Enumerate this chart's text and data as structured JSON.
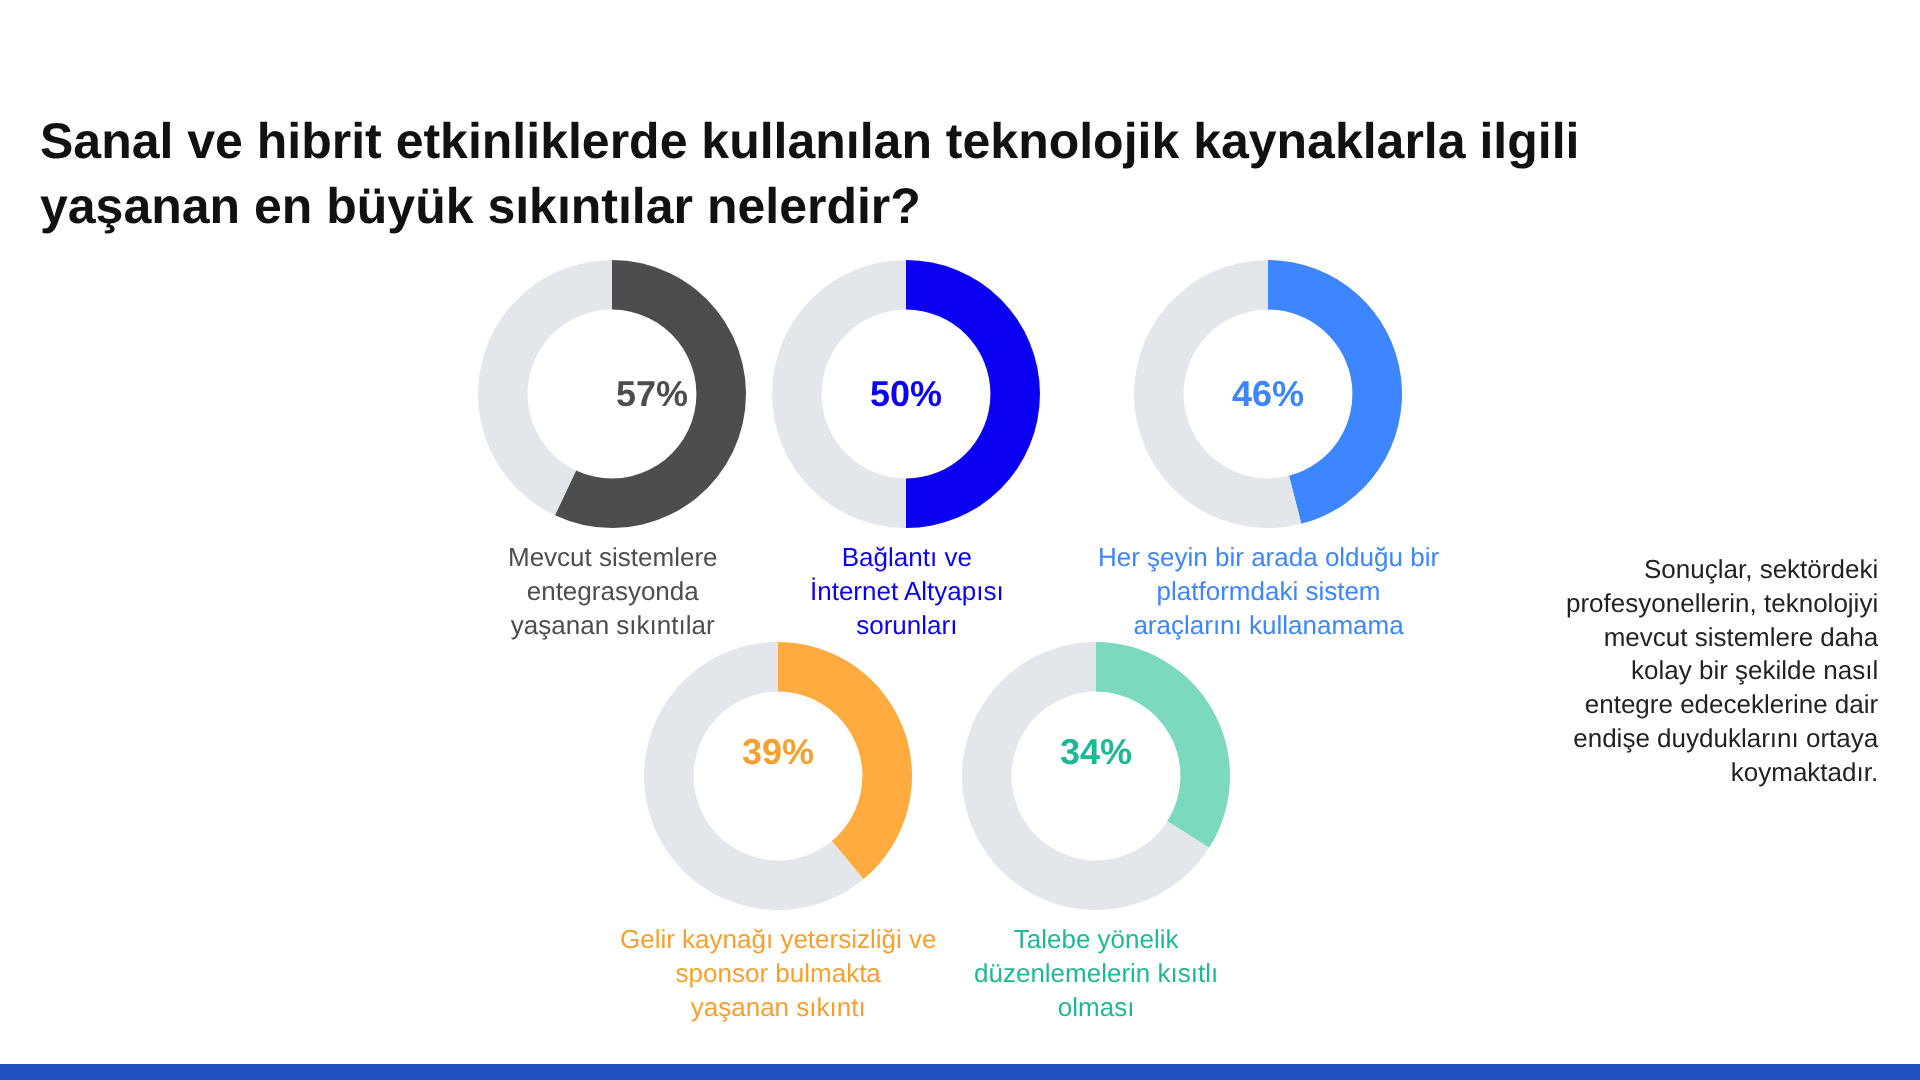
{
  "chart_data": [
    {
      "type": "other",
      "title": "Sanal ve hibrit etkinliklerde kullanılan teknolojik kaynaklarla ilgili\nyaşanan en büyük sıkıntılar nelerdir?",
      "annotations": [
        "Sonuçlar, sektördeki\nprofesyonellerin, teknolojiyi\nmevcut sistemlere daha\nkolay bir şekilde nasıl\nentegre edeceklerine dair\nendişe duyduklarını ortaya\nkoymaktadır."
      ]
    },
    {
      "type": "donut",
      "title": "Mevcut sistemlere\nentegrasyonda\nyaşanan sıkıntılar",
      "categories": [
        null,
        null
      ],
      "values": [
        57,
        43
      ],
      "colors": [
        "#4d4d4d",
        "#e3e6ea"
      ],
      "value_labels": [
        "57%",
        null
      ]
    },
    {
      "type": "donut",
      "title": "Bağlantı ve\nİnternet Altyapısı\nsorunları",
      "categories": [
        null,
        null
      ],
      "values": [
        50,
        50
      ],
      "colors": [
        "#0b00f2",
        "#e3e6ea"
      ],
      "value_labels": [
        "50%",
        null
      ]
    },
    {
      "type": "donut",
      "title": "Her şeyin bir arada olduğu bir\nplatformdaki sistem\naraçlarını kullanamama",
      "categories": [
        null,
        null
      ],
      "values": [
        46,
        54
      ],
      "colors": [
        "#3d86ff",
        "#e3e6ea"
      ],
      "value_labels": [
        "46%",
        null
      ]
    },
    {
      "type": "donut",
      "title": "Gelir kaynağı yetersizliği ve\nsponsor bulmakta\nyaşanan sıkıntı",
      "categories": [
        null,
        null
      ],
      "values": [
        39,
        61
      ],
      "colors": [
        "#ffab40",
        "#e3e6ea"
      ],
      "value_labels": [
        "39%",
        null
      ]
    },
    {
      "type": "donut",
      "title": "Talebe yönelik\ndüzenlemelerin kısıtlı\nolması",
      "categories": [
        null,
        null
      ],
      "values": [
        34,
        66
      ],
      "colors": [
        "#7dd8c0",
        "#e3e6ea"
      ],
      "value_labels": [
        "34%",
        null
      ]
    }
  ]
}
